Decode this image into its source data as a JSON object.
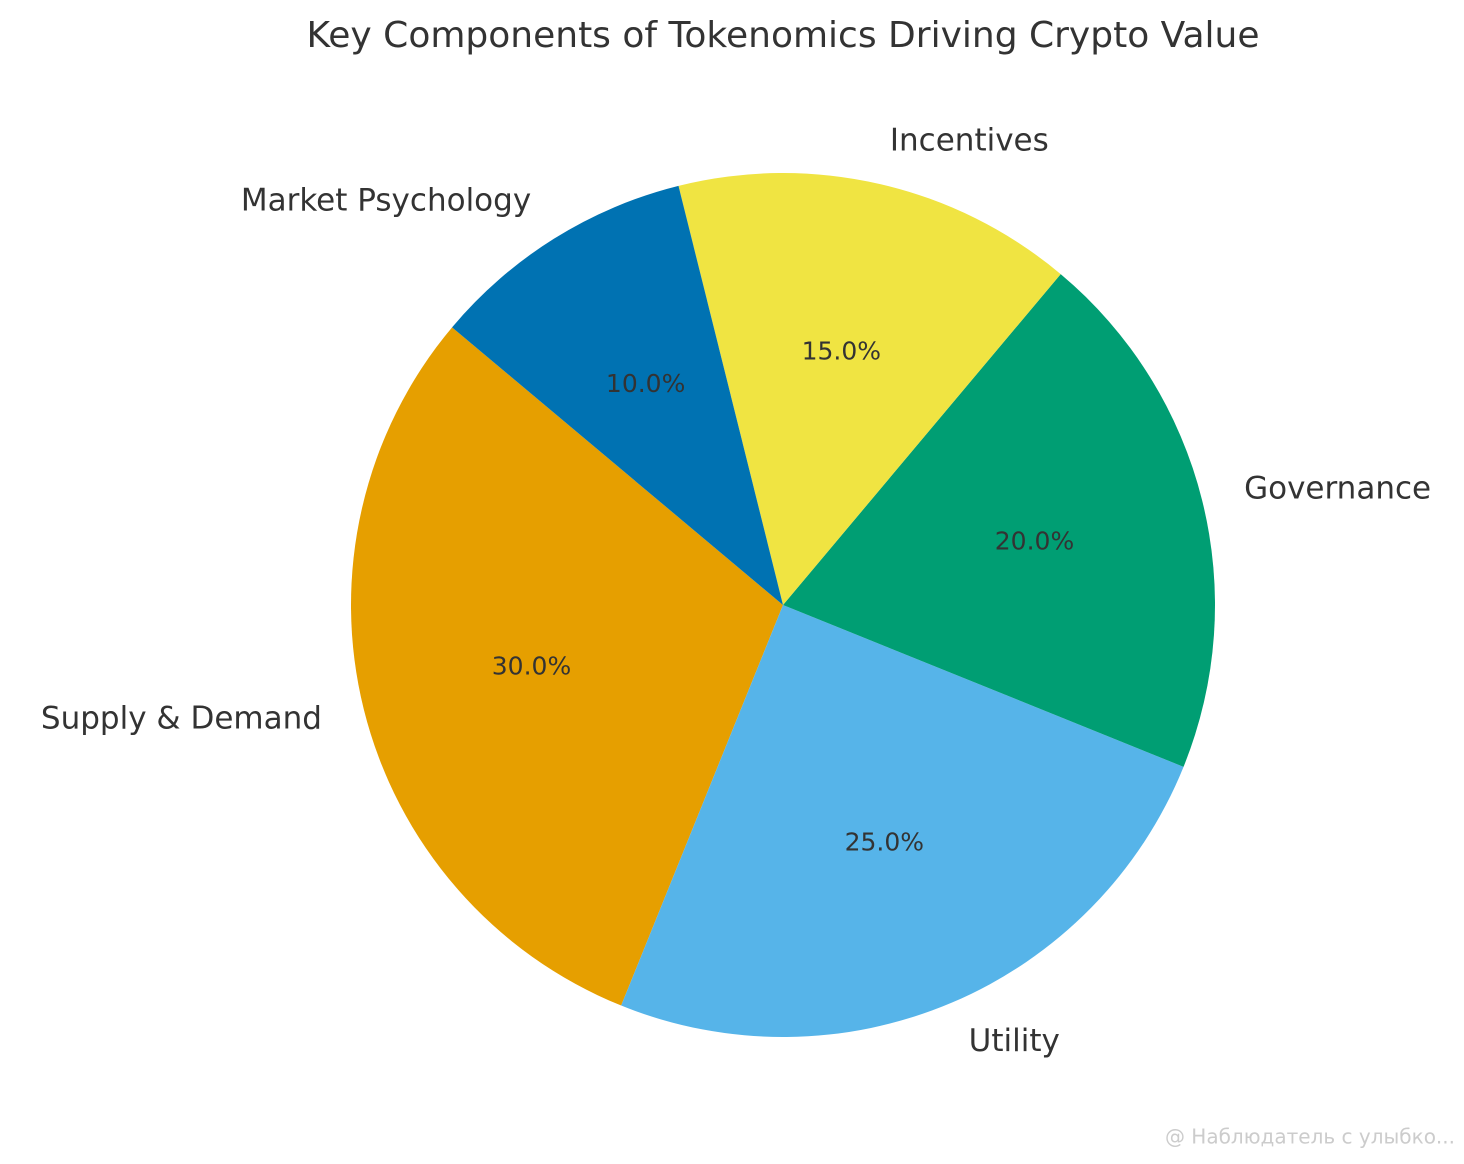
{
  "chart_data": {
    "type": "pie",
    "title": "Key Components of Tokenomics Driving Crypto Value",
    "categories": [
      "Supply & Demand",
      "Utility",
      "Governance",
      "Incentives",
      "Market Psychology"
    ],
    "values": [
      30,
      25,
      20,
      15,
      10
    ],
    "value_labels": [
      "30.0%",
      "25.0%",
      "20.0%",
      "15.0%",
      "10.0%"
    ],
    "colors": [
      "#e69f00",
      "#56b4e9",
      "#009e73",
      "#f0e442",
      "#0072b2"
    ],
    "start_angle": 140,
    "watermark": "@ Наблюдатель с улыбко..."
  }
}
